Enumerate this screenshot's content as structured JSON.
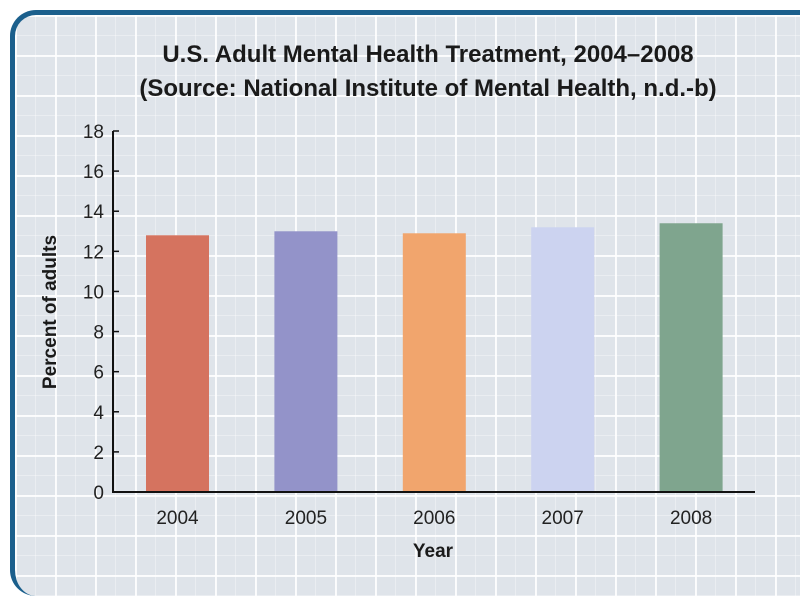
{
  "chart_data": {
    "type": "bar",
    "title": "U.S. Adult Mental Health Treatment, 2004–2008",
    "subtitle": "(Source: National Institute of Mental Health, n.d.-b)",
    "xlabel": "Year",
    "ylabel": "Percent of adults",
    "categories": [
      "2004",
      "2005",
      "2006",
      "2007",
      "2008"
    ],
    "values": [
      12.8,
      13.0,
      12.9,
      13.2,
      13.4
    ],
    "colors": [
      "#d5735f",
      "#9393c9",
      "#f1a56d",
      "#ccd3f0",
      "#7fa58e"
    ],
    "ylim": [
      0,
      18
    ],
    "yticks": [
      "0",
      "2",
      "4",
      "6",
      "8",
      "10",
      "12",
      "14",
      "16",
      "18"
    ],
    "grid": true,
    "legend": "none"
  }
}
